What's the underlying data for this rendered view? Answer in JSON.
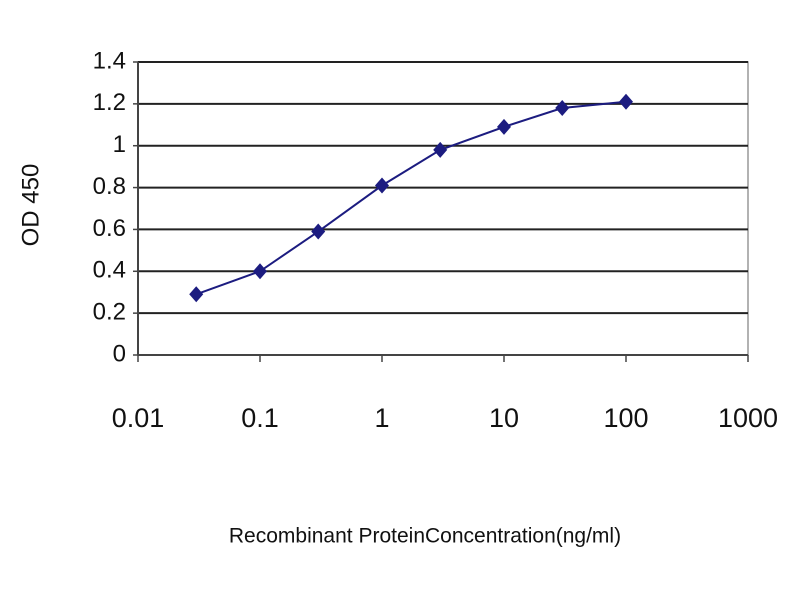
{
  "chart_data": {
    "type": "line",
    "y_label": "OD 450",
    "x_label": "Recombinant ProteinConcentration(ng/ml)",
    "x_scale": "log",
    "x": [
      0.03,
      0.1,
      0.3,
      1,
      3,
      10,
      30,
      100
    ],
    "series": [
      {
        "name": "OD 450",
        "color": "#1c1c80",
        "values": [
          0.29,
          0.4,
          0.59,
          0.81,
          0.98,
          1.09,
          1.18,
          1.21
        ]
      }
    ],
    "xlim": [
      0.01,
      1000
    ],
    "xticks": [
      0.01,
      0.1,
      1,
      10,
      100,
      1000
    ],
    "ylim": [
      0,
      1.4
    ],
    "yticks": [
      0,
      0.2,
      0.4,
      0.6,
      0.8,
      1,
      1.2,
      1.4
    ],
    "grid": true
  }
}
